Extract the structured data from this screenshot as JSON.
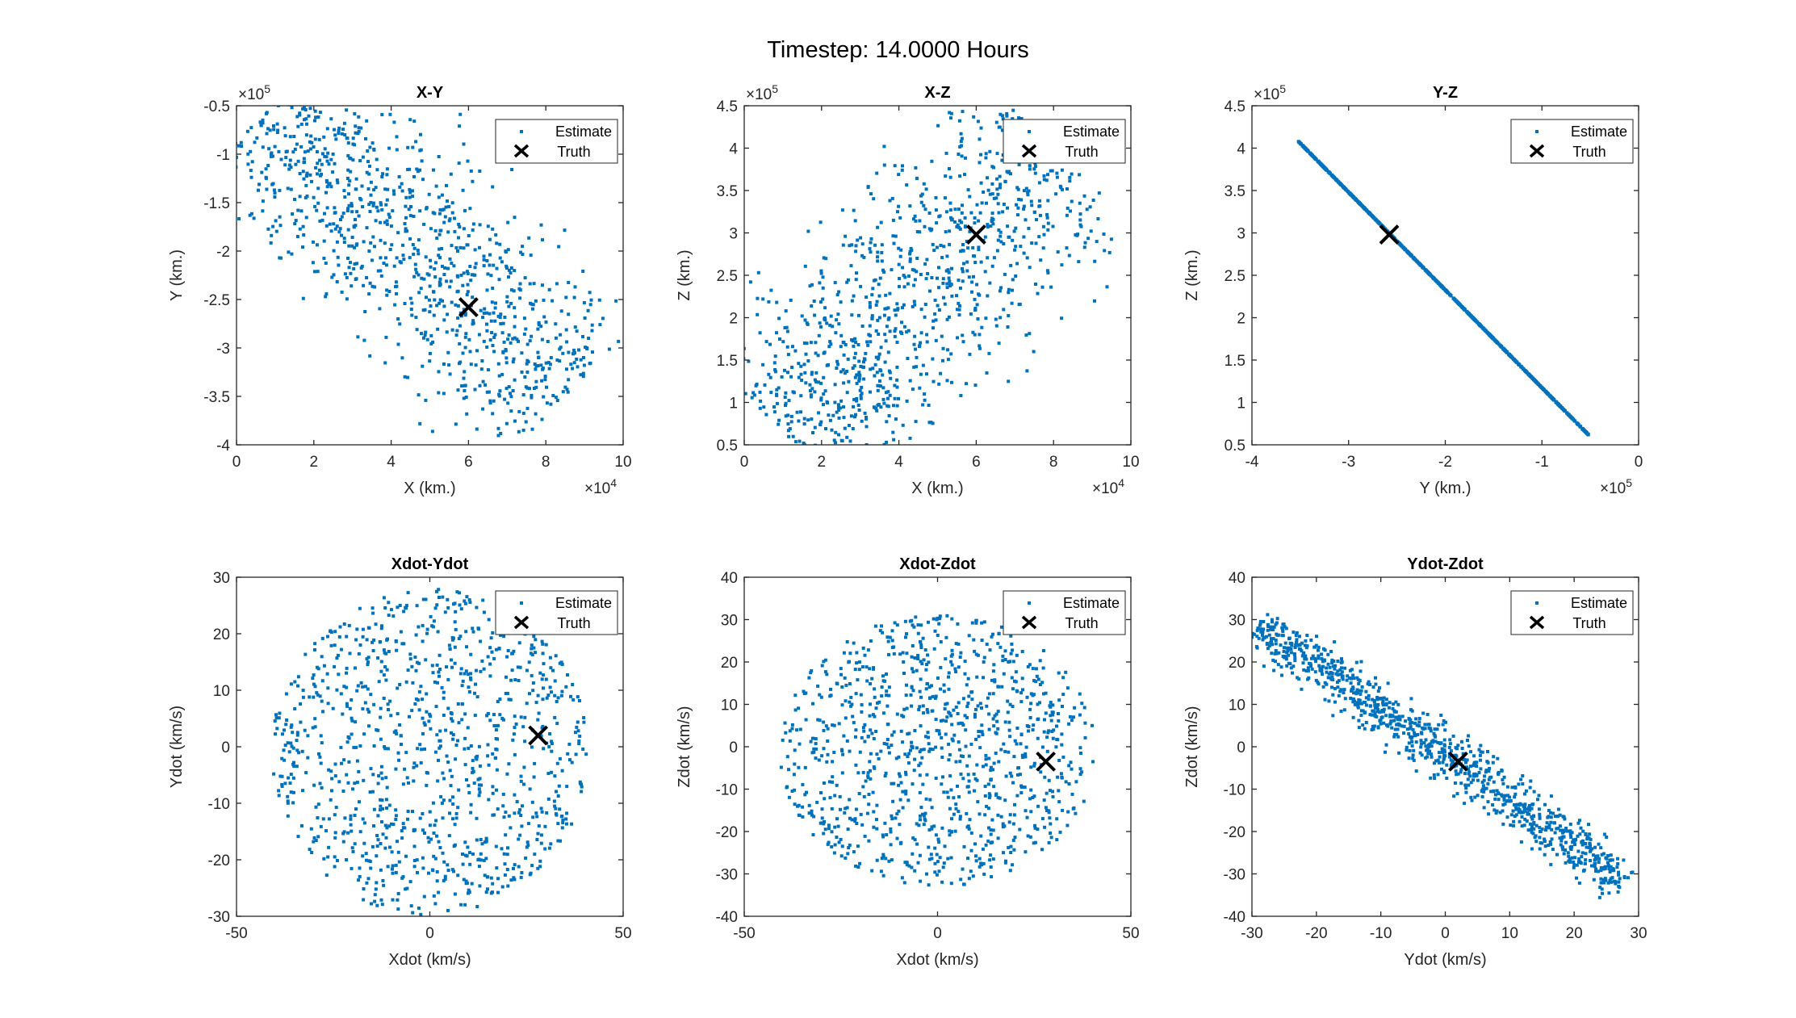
{
  "figure_title": "Timestep: 14.0000 Hours",
  "colors": {
    "estimate": "#0072BD",
    "truth": "#000000",
    "axis": "#262626",
    "legend_border": "#262626"
  },
  "legend": {
    "estimate_label": "Estimate",
    "truth_label": "Truth"
  },
  "chart_data": [
    {
      "type": "scatter",
      "title": "X-Y",
      "xlabel": "X (km.)",
      "ylabel": "Y (km.)",
      "xlim": [
        0,
        100000
      ],
      "ylim": [
        -400000,
        -50000
      ],
      "xticks": [
        0,
        20000,
        40000,
        60000,
        80000,
        100000
      ],
      "xtick_labels": [
        "0",
        "2",
        "4",
        "6",
        "8",
        "10"
      ],
      "yticks": [
        -400000,
        -350000,
        -300000,
        -250000,
        -200000,
        -150000,
        -100000,
        -50000
      ],
      "ytick_labels": [
        "-4",
        "-3.5",
        "-3",
        "-2.5",
        "-2",
        "-1.5",
        "-1",
        "-0.5"
      ],
      "x_exponent": "×10",
      "x_exponent_power": "4",
      "y_exponent": "×10",
      "y_exponent_power": "5",
      "legend_position": "top-right",
      "estimate": {
        "shape": "band",
        "from": [
          8000,
          -52000
        ],
        "to": [
          85000,
          -350000
        ],
        "half_width": 26000,
        "count": 1000
      },
      "truth": [
        60000,
        -258000
      ]
    },
    {
      "type": "scatter",
      "title": "X-Z",
      "xlabel": "X (km.)",
      "ylabel": "Z (km.)",
      "xlim": [
        0,
        100000
      ],
      "ylim": [
        50000,
        450000
      ],
      "xticks": [
        0,
        20000,
        40000,
        60000,
        80000,
        100000
      ],
      "xtick_labels": [
        "0",
        "2",
        "4",
        "6",
        "8",
        "10"
      ],
      "yticks": [
        50000,
        100000,
        150000,
        200000,
        250000,
        300000,
        350000,
        400000,
        450000
      ],
      "ytick_labels": [
        "0.5",
        "1",
        "1.5",
        "2",
        "2.5",
        "3",
        "3.5",
        "4",
        "4.5"
      ],
      "x_exponent": "×10",
      "x_exponent_power": "4",
      "y_exponent": "×10",
      "y_exponent_power": "5",
      "legend_position": "top-right",
      "estimate": {
        "shape": "band",
        "from": [
          10000,
          65000
        ],
        "to": [
          80000,
          400000
        ],
        "half_width": 28000,
        "count": 1000
      },
      "truth": [
        60000,
        298000
      ]
    },
    {
      "type": "scatter",
      "title": "Y-Z",
      "xlabel": "Y (km.)",
      "ylabel": "Z (km.)",
      "xlim": [
        -400000,
        0
      ],
      "ylim": [
        50000,
        450000
      ],
      "xticks": [
        -400000,
        -300000,
        -200000,
        -100000,
        0
      ],
      "xtick_labels": [
        "-4",
        "-3",
        "-2",
        "-1",
        "0"
      ],
      "yticks": [
        50000,
        100000,
        150000,
        200000,
        250000,
        300000,
        350000,
        400000,
        450000
      ],
      "ytick_labels": [
        "0.5",
        "1",
        "1.5",
        "2",
        "2.5",
        "3",
        "3.5",
        "4",
        "4.5"
      ],
      "x_exponent": "×10",
      "x_exponent_power": "5",
      "y_exponent": "×10",
      "y_exponent_power": "5",
      "legend_position": "top-right",
      "estimate": {
        "shape": "line",
        "from": [
          -352000,
          408000
        ],
        "to": [
          -52000,
          62000
        ],
        "count": 900
      },
      "truth": [
        -258000,
        298000
      ]
    },
    {
      "type": "scatter",
      "title": "Xdot-Ydot",
      "xlabel": "Xdot (km/s)",
      "ylabel": "Ydot (km/s)",
      "xlim": [
        -50,
        50
      ],
      "ylim": [
        -30,
        30
      ],
      "xticks": [
        -50,
        0,
        50
      ],
      "xtick_labels": [
        "-50",
        "0",
        "50"
      ],
      "yticks": [
        -30,
        -20,
        -10,
        0,
        10,
        20,
        30
      ],
      "ytick_labels": [
        "-30",
        "-20",
        "-10",
        "0",
        "10",
        "20",
        "30"
      ],
      "legend_position": "top-right",
      "estimate": {
        "shape": "ellipse",
        "center": [
          0,
          -1
        ],
        "radii": [
          41,
          29
        ],
        "count": 1000
      },
      "truth": [
        28,
        2
      ]
    },
    {
      "type": "scatter",
      "title": "Xdot-Zdot",
      "xlabel": "Xdot (km/s)",
      "ylabel": "Zdot (km/s)",
      "xlim": [
        -50,
        50
      ],
      "ylim": [
        -40,
        40
      ],
      "xticks": [
        -50,
        0,
        50
      ],
      "xtick_labels": [
        "-50",
        "0",
        "50"
      ],
      "yticks": [
        -40,
        -30,
        -20,
        -10,
        0,
        10,
        20,
        30,
        40
      ],
      "ytick_labels": [
        "-40",
        "-30",
        "-20",
        "-10",
        "0",
        "10",
        "20",
        "30",
        "40"
      ],
      "legend_position": "top-right",
      "estimate": {
        "shape": "ellipse",
        "center": [
          0,
          -1
        ],
        "radii": [
          41,
          32
        ],
        "count": 1000
      },
      "truth": [
        28,
        -3.5
      ]
    },
    {
      "type": "scatter",
      "title": "Ydot-Zdot",
      "xlabel": "Ydot (km/s)",
      "ylabel": "Zdot (km/s)",
      "xlim": [
        -30,
        30
      ],
      "ylim": [
        -40,
        40
      ],
      "xticks": [
        -30,
        -20,
        -10,
        0,
        10,
        20,
        30
      ],
      "xtick_labels": [
        "-30",
        "-20",
        "-10",
        "0",
        "10",
        "20",
        "30"
      ],
      "yticks": [
        -40,
        -30,
        -20,
        -10,
        0,
        10,
        20,
        30,
        40
      ],
      "ytick_labels": [
        "-40",
        "-30",
        "-20",
        "-10",
        "0",
        "10",
        "20",
        "30",
        "40"
      ],
      "legend_position": "top-right",
      "estimate": {
        "shape": "band",
        "from": [
          -29,
          29
        ],
        "to": [
          28,
          -32
        ],
        "half_width": 4,
        "count": 1000
      },
      "truth": [
        2,
        -3.5
      ]
    }
  ]
}
